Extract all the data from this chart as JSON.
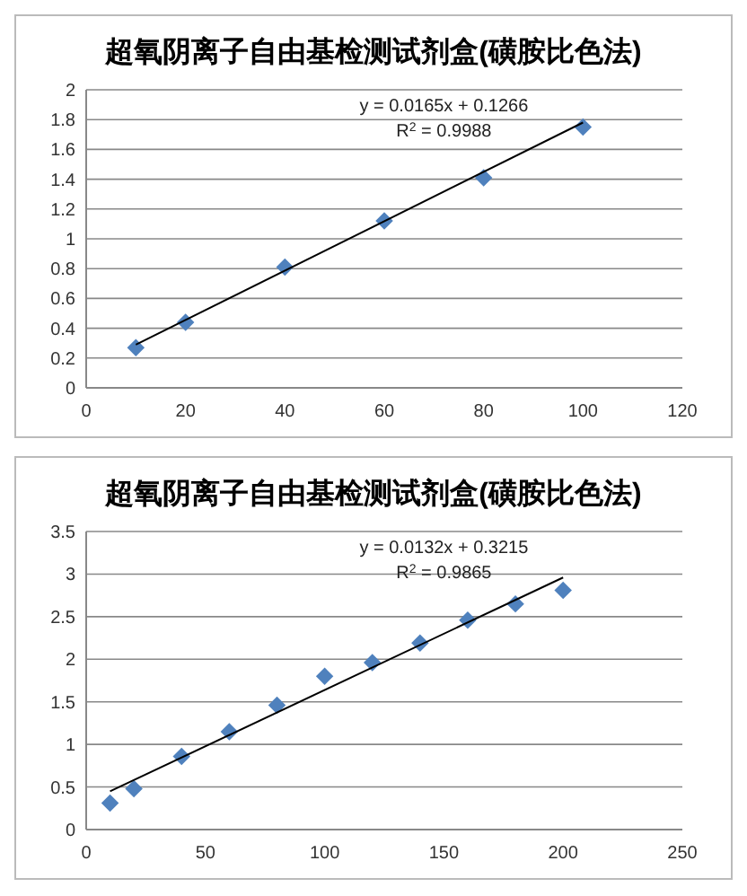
{
  "chart_data": [
    {
      "type": "scatter",
      "title": "超氧阴离子自由基检测试剂盒(磺胺比色法)",
      "grid": "y",
      "xlim": [
        0,
        120
      ],
      "xticks": [
        0,
        20,
        40,
        60,
        80,
        100,
        120
      ],
      "ylim": [
        0,
        2
      ],
      "yticks": [
        0,
        0.2,
        0.4,
        0.6,
        0.8,
        1,
        1.2,
        1.4,
        1.6,
        1.8,
        2
      ],
      "annotations": [
        "y = 0.0165x + 0.1266",
        "R$^{2}$ = 0.9988"
      ],
      "series": [
        {
          "color": "#4f81bd",
          "marker": "diamond",
          "x": [
            10,
            20,
            40,
            60,
            80,
            100
          ],
          "values": [
            0.27,
            0.44,
            0.81,
            1.12,
            1.41,
            1.75
          ]
        },
        {
          "type": "line",
          "color": "#000000",
          "marker": "none",
          "x": [
            10,
            100
          ],
          "values": [
            0.29,
            1.78
          ]
        }
      ]
    },
    {
      "type": "scatter",
      "title": "超氧阴离子自由基检测试剂盒(磺胺比色法)",
      "grid": "y",
      "xlim": [
        0,
        250
      ],
      "xticks": [
        0,
        50,
        100,
        150,
        200,
        250
      ],
      "ylim": [
        0,
        3.5
      ],
      "yticks": [
        0,
        0.5,
        1,
        1.5,
        2,
        2.5,
        3,
        3.5
      ],
      "annotations": [
        "y = 0.0132x + 0.3215",
        "R$^{2}$ = 0.9865"
      ],
      "series": [
        {
          "color": "#4f81bd",
          "marker": "diamond",
          "x": [
            10,
            20,
            40,
            60,
            80,
            100,
            120,
            140,
            160,
            180,
            200
          ],
          "values": [
            0.31,
            0.48,
            0.86,
            1.15,
            1.46,
            1.8,
            1.96,
            2.19,
            2.46,
            2.65,
            2.81
          ]
        },
        {
          "type": "line",
          "color": "#000000",
          "marker": "none",
          "x": [
            10,
            200
          ],
          "values": [
            0.45,
            2.96
          ]
        }
      ]
    }
  ]
}
